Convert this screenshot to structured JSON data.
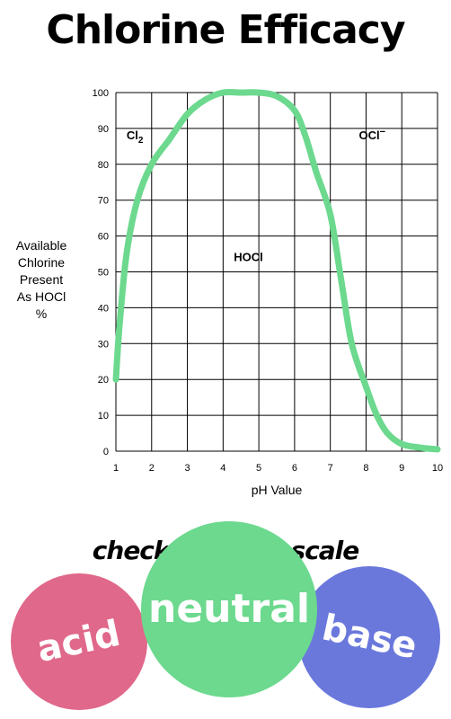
{
  "title": "Chlorine Efficacy",
  "subtitle": "check your pH scale",
  "circles": {
    "acid": "acid",
    "neutral": "neutral",
    "base": "base"
  },
  "colors": {
    "curve": "#6cd98e",
    "acid": "#e0688a",
    "neutral": "#6cd98e",
    "base": "#6a78dc",
    "grid": "#000000"
  },
  "chart_data": {
    "type": "line",
    "xlabel": "pH Value",
    "ylabel": "Available\nChlorine\nPresent\nAs HOCl\n%",
    "xlim": [
      1,
      10
    ],
    "ylim": [
      0,
      100
    ],
    "xticks": [
      1,
      2,
      3,
      4,
      5,
      6,
      7,
      8,
      9,
      10
    ],
    "yticks": [
      0,
      10,
      20,
      30,
      40,
      50,
      60,
      70,
      80,
      90,
      100
    ],
    "grid": true,
    "series": [
      {
        "x": [
          1.0,
          1.1,
          1.3,
          1.6,
          2.0,
          2.5,
          3.0,
          3.5,
          4.0,
          4.5,
          5.0,
          5.5,
          6.0,
          6.3,
          6.6,
          7.0,
          7.3,
          7.6,
          8.0,
          8.3,
          8.6,
          9.0,
          9.5,
          10.0
        ],
        "y": [
          20,
          35,
          55,
          70,
          80,
          87,
          94,
          98,
          100,
          100,
          100,
          99,
          95,
          88,
          78,
          66,
          48,
          30,
          18,
          10,
          5,
          2,
          1,
          0.5
        ]
      }
    ],
    "region_labels": [
      {
        "main": "Cl",
        "sub": "2",
        "x": 1.3,
        "y": 87
      },
      {
        "main": "HOCl",
        "x": 4.3,
        "y": 53
      },
      {
        "main": "OCl",
        "sup": "−",
        "x": 7.8,
        "y": 87
      }
    ]
  }
}
